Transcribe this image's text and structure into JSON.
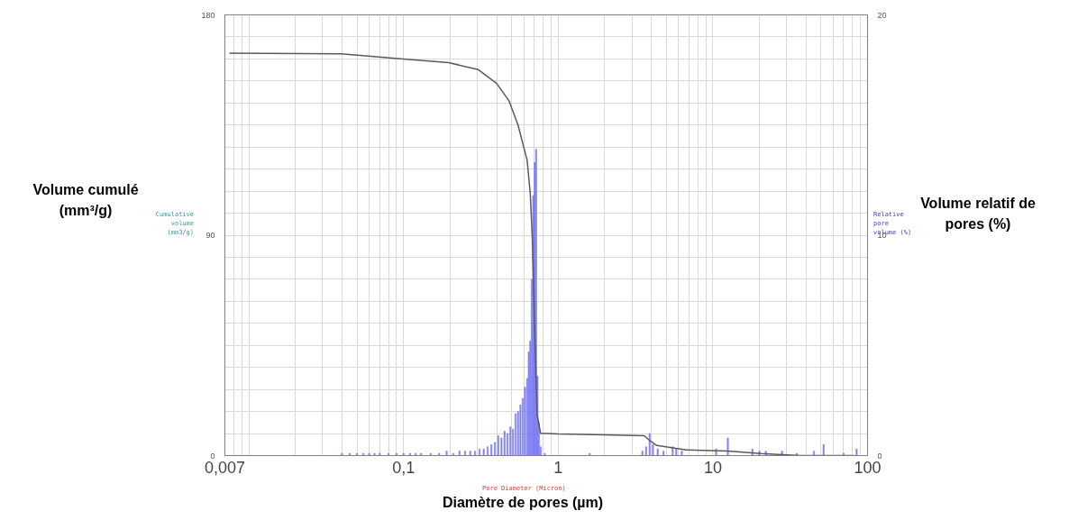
{
  "chart_data": {
    "type": "line",
    "xlabel": "Diamètre de pores (µm)",
    "ylabel": "Volume cumulé (mm³/g)",
    "y2label": "Volume relatif de pores (%)",
    "annotations": [
      "Cumulative volume (mm3/g)",
      "Relative pore volume (%)",
      "Pore Diameter (Micron)"
    ],
    "log": "x",
    "grid": true,
    "marker": "none",
    "line_style": "solid",
    "xlim": [
      0.007,
      100
    ],
    "ylim": [
      0,
      180
    ],
    "y2lim": [
      0,
      20
    ],
    "xticks": [
      {
        "value": 0.007,
        "label": "0,007"
      },
      {
        "value": 0.008,
        "label": null
      },
      {
        "value": 0.009,
        "label": null
      },
      {
        "value": 0.01,
        "label": null
      },
      {
        "value": 0.02,
        "label": null
      },
      {
        "value": 0.03,
        "label": null
      },
      {
        "value": 0.04,
        "label": null
      },
      {
        "value": 0.05,
        "label": null
      },
      {
        "value": 0.06,
        "label": null
      },
      {
        "value": 0.07,
        "label": null
      },
      {
        "value": 0.08,
        "label": null
      },
      {
        "value": 0.09,
        "label": null
      },
      {
        "value": 0.1,
        "label": "0,1"
      },
      {
        "value": 0.2,
        "label": null
      },
      {
        "value": 0.3,
        "label": null
      },
      {
        "value": 0.4,
        "label": null
      },
      {
        "value": 0.5,
        "label": null
      },
      {
        "value": 0.6,
        "label": null
      },
      {
        "value": 0.7,
        "label": null
      },
      {
        "value": 0.8,
        "label": null
      },
      {
        "value": 0.9,
        "label": null
      },
      1,
      {
        "value": 2,
        "label": null
      },
      {
        "value": 3,
        "label": null
      },
      {
        "value": 4,
        "label": null
      },
      {
        "value": 5,
        "label": null
      },
      {
        "value": 6,
        "label": null
      },
      {
        "value": 7,
        "label": null
      },
      {
        "value": 8,
        "label": null
      },
      {
        "value": 9,
        "label": null
      },
      10,
      {
        "value": 20,
        "label": null
      },
      {
        "value": 30,
        "label": null
      },
      {
        "value": 40,
        "label": null
      },
      {
        "value": 50,
        "label": null
      },
      {
        "value": 60,
        "label": null
      },
      {
        "value": 70,
        "label": null
      },
      {
        "value": 80,
        "label": null
      },
      {
        "value": 90,
        "label": null
      },
      100
    ],
    "yticks": [
      0,
      {
        "value": 9,
        "label": null
      },
      {
        "value": 18,
        "label": null
      },
      {
        "value": 27,
        "label": null
      },
      {
        "value": 36,
        "label": null
      },
      {
        "value": 45,
        "label": null
      },
      {
        "value": 54,
        "label": null
      },
      {
        "value": 63,
        "label": null
      },
      {
        "value": 72,
        "label": null
      },
      {
        "value": 81,
        "label": null
      },
      90,
      {
        "value": 99,
        "label": null
      },
      {
        "value": 108,
        "label": null
      },
      {
        "value": 117,
        "label": null
      },
      {
        "value": 126,
        "label": null
      },
      {
        "value": 135,
        "label": null
      },
      {
        "value": 144,
        "label": null
      },
      {
        "value": 153,
        "label": null
      },
      {
        "value": 162,
        "label": null
      },
      {
        "value": 171,
        "label": null
      },
      180
    ],
    "y2ticks": [
      0,
      10,
      20
    ],
    "series": [
      {
        "type": "bar",
        "axis": "y2",
        "color": "#6f6ff5",
        "x": [
          0.04,
          0.045,
          0.05,
          0.055,
          0.06,
          0.065,
          0.07,
          0.08,
          0.09,
          0.1,
          0.11,
          0.12,
          0.13,
          0.15,
          0.17,
          0.19,
          0.21,
          0.23,
          0.25,
          0.27,
          0.29,
          0.31,
          0.33,
          0.35,
          0.37,
          0.39,
          0.41,
          0.43,
          0.45,
          0.47,
          0.49,
          0.51,
          0.53,
          0.55,
          0.57,
          0.59,
          0.61,
          0.63,
          0.645,
          0.66,
          0.675,
          0.69,
          0.705,
          0.72,
          0.735,
          0.75,
          0.77,
          0.82,
          1.6,
          3.5,
          3.7,
          3.9,
          4.1,
          4.4,
          4.8,
          5.5,
          5.8,
          6.3,
          10.5,
          12.5,
          18,
          20,
          22,
          28,
          35,
          45,
          52,
          70,
          85
        ],
        "values": [
          0.1,
          0.1,
          0.1,
          0.1,
          0.1,
          0.1,
          0.1,
          0.1,
          0.1,
          0.1,
          0.1,
          0.1,
          0.1,
          0.1,
          0.1,
          0.2,
          0.1,
          0.2,
          0.2,
          0.2,
          0.2,
          0.3,
          0.3,
          0.4,
          0.5,
          0.6,
          0.9,
          0.8,
          1.1,
          1.0,
          1.3,
          1.2,
          1.9,
          2.0,
          2.3,
          2.6,
          3.1,
          3.5,
          4.7,
          5.2,
          8.0,
          11.8,
          13.3,
          13.9,
          3.6,
          1.5,
          0.4,
          0.1,
          0.1,
          0.2,
          0.4,
          1.0,
          0.5,
          0.3,
          0.2,
          0.4,
          0.3,
          0.2,
          0.3,
          0.8,
          0.3,
          0.2,
          0.2,
          0.2,
          0.1,
          0.2,
          0.5,
          0.1,
          0.3
        ]
      },
      {
        "color": "#5a5a5a",
        "x": [
          0.0075,
          0.0396,
          0.096,
          0.196,
          0.305,
          0.4,
          0.48,
          0.55,
          0.63,
          0.66,
          0.68,
          0.7,
          0.73,
          0.77,
          1.0,
          2.0,
          3.6,
          3.95,
          4.34,
          6.75,
          12.6,
          20.4,
          36.7,
          81.7
        ],
        "values": [
          164.4,
          164.1,
          162.1,
          160.5,
          157.6,
          152,
          145,
          135,
          120.6,
          107,
          89,
          59,
          16.7,
          9.1,
          8.8,
          8.5,
          8.1,
          5.9,
          4.1,
          2.3,
          1.8,
          0.8,
          0,
          0
        ]
      }
    ]
  }
}
